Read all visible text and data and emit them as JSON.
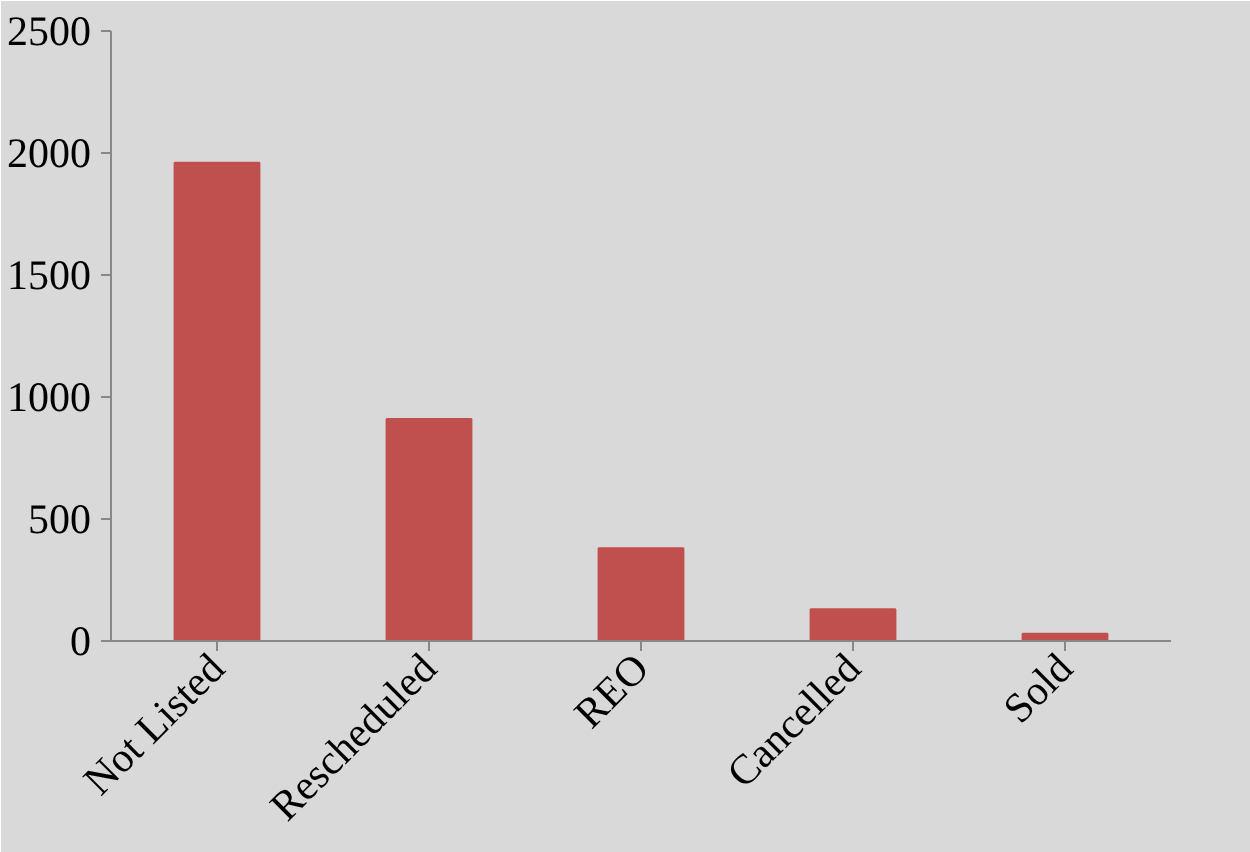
{
  "chart_data": {
    "type": "bar",
    "categories": [
      "Not Listed",
      "Rescheduled",
      "REO",
      "Cancelled",
      "Sold"
    ],
    "values": [
      1960,
      910,
      380,
      130,
      30
    ],
    "color": "#c0504d",
    "ylim": [
      0,
      2500
    ],
    "yticks": [
      0,
      500,
      1000,
      1500,
      2000,
      2500
    ],
    "grid": false
  }
}
